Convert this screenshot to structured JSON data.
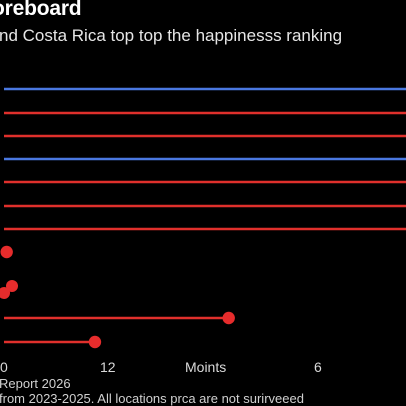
{
  "header": {
    "title": "oreboard",
    "subtitle": "nd Costa Rica top top the happinesss ranking"
  },
  "footer": {
    "source": "Report 2026",
    "note": "from 2023-2025. All locations prca are not surirveeed"
  },
  "colors": {
    "background": "#000000",
    "blue": "#4a78e0",
    "red": "#e0302c",
    "dot": "#e62c2c"
  },
  "chart_data": {
    "type": "dot-plot",
    "x_tick_labels": [
      "0",
      "12",
      "Moints",
      "6"
    ],
    "series": [
      {
        "color": "blue",
        "value": null
      },
      {
        "color": "red",
        "value": null
      },
      {
        "color": "red",
        "value": null
      },
      {
        "color": "blue",
        "value": null
      },
      {
        "color": "red",
        "value": null
      },
      {
        "color": "red",
        "value": null
      },
      {
        "color": "red",
        "value": null
      },
      {
        "color": "red",
        "value": 0.25
      },
      {
        "color": "red",
        "value": 21
      },
      {
        "color": "red",
        "value": 8.5
      }
    ]
  }
}
